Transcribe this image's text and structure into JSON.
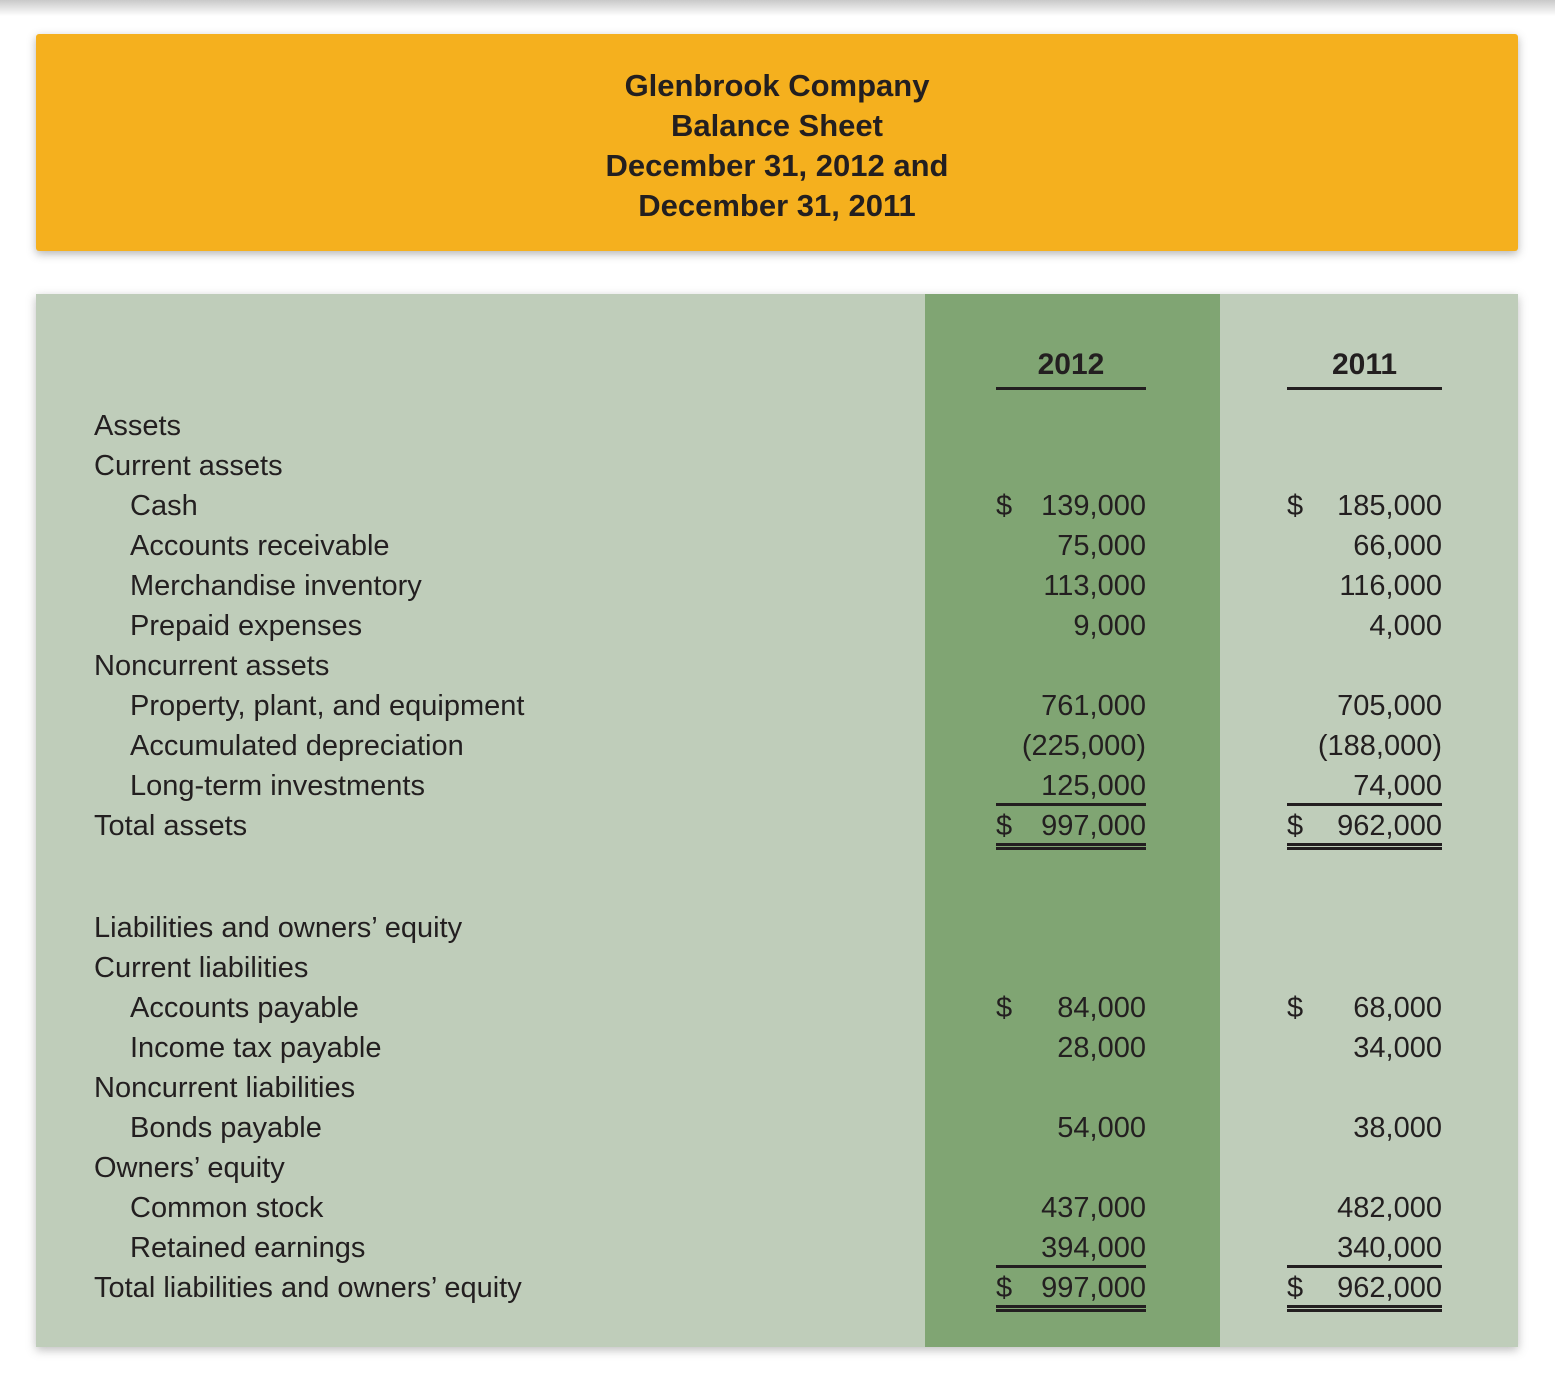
{
  "header": {
    "title_lines": [
      "Glenbrook Company",
      "Balance Sheet",
      "December 31, 2012 and",
      "December 31, 2011"
    ]
  },
  "colors": {
    "header_bg": "#F5B01E",
    "table_bg": "#BFCDBA",
    "highlight_column_bg": "#80A573",
    "text": "#231F20"
  },
  "table": {
    "columns": [
      "2012",
      "2011"
    ],
    "rows": [
      {
        "label": "Assets",
        "indent": 0
      },
      {
        "label": "Current assets",
        "indent": 0
      },
      {
        "label": "Cash",
        "indent": 1,
        "v2012": {
          "cur": "$",
          "amt": "139,000"
        },
        "v2011": {
          "cur": "$",
          "amt": "185,000"
        }
      },
      {
        "label": "Accounts receivable",
        "indent": 1,
        "v2012": {
          "amt": "75,000"
        },
        "v2011": {
          "amt": "66,000"
        }
      },
      {
        "label": "Merchandise inventory",
        "indent": 1,
        "v2012": {
          "amt": "113,000"
        },
        "v2011": {
          "amt": "116,000"
        }
      },
      {
        "label": "Prepaid expenses",
        "indent": 1,
        "v2012": {
          "amt": "9,000"
        },
        "v2011": {
          "amt": "4,000"
        }
      },
      {
        "label": "Noncurrent assets",
        "indent": 0
      },
      {
        "label": "Property, plant, and equipment",
        "indent": 1,
        "v2012": {
          "amt": "761,000"
        },
        "v2011": {
          "amt": "705,000"
        }
      },
      {
        "label": "Accumulated depreciation",
        "indent": 1,
        "v2012": {
          "amt": "(225,000)"
        },
        "v2011": {
          "amt": "(188,000)"
        }
      },
      {
        "label": "Long-term investments",
        "indent": 1,
        "v2012": {
          "amt": "125,000"
        },
        "v2011": {
          "amt": "74,000"
        },
        "underline": "single"
      },
      {
        "label": "Total assets",
        "indent": 0,
        "v2012": {
          "cur": "$",
          "amt": "997,000"
        },
        "v2011": {
          "cur": "$",
          "amt": "962,000"
        },
        "underline": "double"
      },
      {
        "label": "",
        "spacer": true
      },
      {
        "label": "Liabilities and owners’ equity",
        "indent": 0
      },
      {
        "label": "Current liabilities",
        "indent": 0
      },
      {
        "label": "Accounts payable",
        "indent": 1,
        "v2012": {
          "cur": "$",
          "amt": "84,000"
        },
        "v2011": {
          "cur": "$",
          "amt": "68,000"
        }
      },
      {
        "label": "Income tax payable",
        "indent": 1,
        "v2012": {
          "amt": "28,000"
        },
        "v2011": {
          "amt": "34,000"
        }
      },
      {
        "label": "Noncurrent liabilities",
        "indent": 0
      },
      {
        "label": "Bonds payable",
        "indent": 1,
        "v2012": {
          "amt": "54,000"
        },
        "v2011": {
          "amt": "38,000"
        }
      },
      {
        "label": "Owners’ equity",
        "indent": 0
      },
      {
        "label": "Common stock",
        "indent": 1,
        "v2012": {
          "amt": "437,000"
        },
        "v2011": {
          "amt": "482,000"
        }
      },
      {
        "label": "Retained earnings",
        "indent": 1,
        "v2012": {
          "amt": "394,000"
        },
        "v2011": {
          "amt": "340,000"
        },
        "underline": "single"
      },
      {
        "label": "Total liabilities and owners’ equity",
        "indent": 0,
        "v2012": {
          "cur": "$",
          "amt": "997,000"
        },
        "v2011": {
          "cur": "$",
          "amt": "962,000"
        },
        "underline": "double"
      }
    ]
  }
}
